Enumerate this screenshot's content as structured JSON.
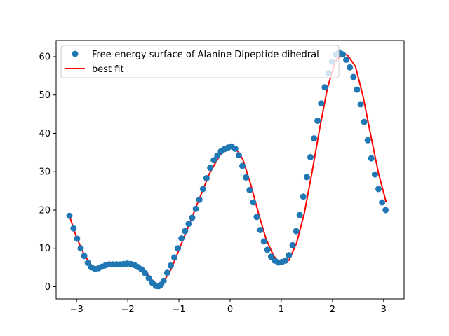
{
  "chart_data": {
    "type": "scatter",
    "title": "",
    "xlabel": "",
    "ylabel": "",
    "xlim": [
      -3.4,
      3.4
    ],
    "ylim": [
      -3.2,
      64.2
    ],
    "xticks": [
      -3,
      -2,
      -1,
      0,
      1,
      2,
      3
    ],
    "yticks": [
      0,
      10,
      20,
      30,
      40,
      50,
      60
    ],
    "grid": false,
    "legend_position": "top-right",
    "colors": {
      "points": "#1f77b4",
      "fit": "#ff0000"
    },
    "series": [
      {
        "name": "Free-energy surface of Alanine Dipeptide dihedral",
        "kind": "scatter",
        "x": [
          -3.14,
          -3.06,
          -2.99,
          -2.92,
          -2.85,
          -2.78,
          -2.71,
          -2.64,
          -2.57,
          -2.5,
          -2.43,
          -2.36,
          -2.29,
          -2.22,
          -2.15,
          -2.08,
          -2.01,
          -1.94,
          -1.87,
          -1.8,
          -1.73,
          -1.66,
          -1.59,
          -1.52,
          -1.45,
          -1.4,
          -1.35,
          -1.3,
          -1.23,
          -1.16,
          -1.09,
          -1.02,
          -0.95,
          -0.88,
          -0.81,
          -0.74,
          -0.67,
          -0.6,
          -0.53,
          -0.46,
          -0.39,
          -0.32,
          -0.25,
          -0.18,
          -0.11,
          -0.04,
          0.03,
          0.1,
          0.17,
          0.24,
          0.31,
          0.38,
          0.45,
          0.52,
          0.59,
          0.66,
          0.73,
          0.8,
          0.87,
          0.94,
          1.01,
          1.08,
          1.15,
          1.22,
          1.29,
          1.36,
          1.43,
          1.5,
          1.57,
          1.64,
          1.71,
          1.78,
          1.85,
          1.92,
          1.99,
          2.06,
          2.13,
          2.2,
          2.27,
          2.34,
          2.41,
          2.48,
          2.55,
          2.62,
          2.69,
          2.76,
          2.83,
          2.9,
          2.97,
          3.04
        ],
        "y": [
          18.5,
          15.2,
          12.5,
          10.0,
          8.0,
          6.2,
          5.0,
          4.6,
          4.8,
          5.2,
          5.6,
          5.8,
          5.8,
          5.8,
          5.8,
          5.9,
          6.0,
          5.9,
          5.6,
          5.1,
          4.5,
          3.5,
          2.2,
          1.0,
          0.2,
          0.1,
          0.5,
          1.5,
          3.6,
          5.5,
          7.6,
          10.0,
          12.6,
          14.5,
          16.4,
          18.0,
          20.3,
          22.7,
          25.5,
          28.3,
          31.0,
          33.0,
          34.2,
          35.3,
          35.9,
          36.3,
          36.6,
          36.0,
          34.3,
          31.5,
          28.5,
          25.2,
          22.0,
          18.2,
          14.8,
          11.8,
          9.6,
          7.8,
          6.8,
          6.3,
          6.4,
          6.8,
          8.2,
          10.8,
          14.5,
          18.7,
          23.5,
          28.6,
          33.8,
          38.7,
          43.3,
          47.8,
          52.0,
          55.7,
          58.7,
          60.5,
          61.1,
          60.6,
          59.2,
          57.2,
          54.7,
          51.4,
          47.6,
          43.0,
          38.2,
          33.5,
          29.3,
          25.5,
          22.0,
          20.0
        ]
      },
      {
        "name": "best fit",
        "kind": "line",
        "x": [
          -3.14,
          -3.0,
          -2.85,
          -2.7,
          -2.55,
          -2.4,
          -2.25,
          -2.1,
          -1.95,
          -1.8,
          -1.65,
          -1.5,
          -1.4,
          -1.3,
          -1.15,
          -1.0,
          -0.8,
          -0.6,
          -0.4,
          -0.2,
          -0.05,
          0.1,
          0.25,
          0.4,
          0.55,
          0.7,
          0.85,
          0.95,
          1.05,
          1.15,
          1.3,
          1.45,
          1.6,
          1.75,
          1.9,
          2.05,
          2.2,
          2.3,
          2.45,
          2.6,
          2.75,
          2.9,
          3.05
        ],
        "y": [
          18.5,
          12.8,
          8.3,
          5.4,
          4.8,
          5.2,
          5.6,
          5.9,
          6.0,
          5.4,
          3.8,
          1.3,
          0.5,
          1.3,
          4.6,
          9.6,
          16.2,
          23.0,
          29.6,
          34.3,
          36.0,
          36.3,
          33.2,
          26.8,
          19.4,
          12.5,
          8.0,
          6.5,
          6.1,
          6.9,
          11.4,
          19.2,
          29.8,
          41.2,
          51.7,
          58.6,
          61.0,
          60.3,
          57.4,
          49.6,
          39.4,
          29.6,
          22.0
        ]
      }
    ]
  }
}
